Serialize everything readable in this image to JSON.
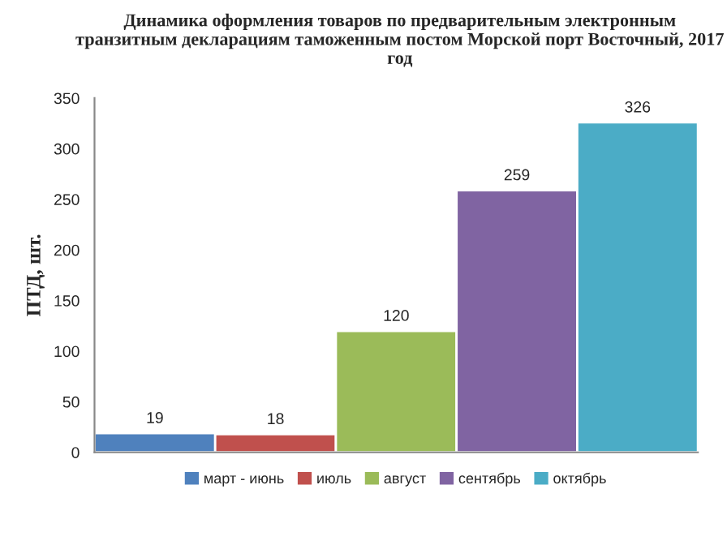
{
  "chart_data": {
    "type": "bar",
    "title": "Динамика оформления товаров по предварительным электронным транзитным декларациям таможенным постом Морской порт Восточный, 2017 год",
    "ylabel": "ПТД, шт.",
    "categories": [
      null,
      null,
      null,
      null,
      null
    ],
    "series": [
      {
        "name": "март - июнь",
        "color": "#4f81bd",
        "values": [
          19,
          null,
          null,
          null,
          null
        ]
      },
      {
        "name": "июль",
        "color": "#c0504d",
        "values": [
          null,
          18,
          null,
          null,
          null
        ]
      },
      {
        "name": "август",
        "color": "#9bbb59",
        "values": [
          null,
          null,
          120,
          null,
          null
        ]
      },
      {
        "name": "сентябрь",
        "color": "#8064a2",
        "values": [
          null,
          null,
          null,
          259,
          null
        ]
      },
      {
        "name": "октябрь",
        "color": "#4bacc6",
        "values": [
          null,
          null,
          null,
          null,
          326
        ]
      }
    ],
    "ylim": [
      0,
      350
    ],
    "yticks": [
      0,
      50,
      100,
      150,
      200,
      250,
      300,
      350
    ],
    "data_labels": true,
    "grid": false,
    "legend": "bottom"
  }
}
